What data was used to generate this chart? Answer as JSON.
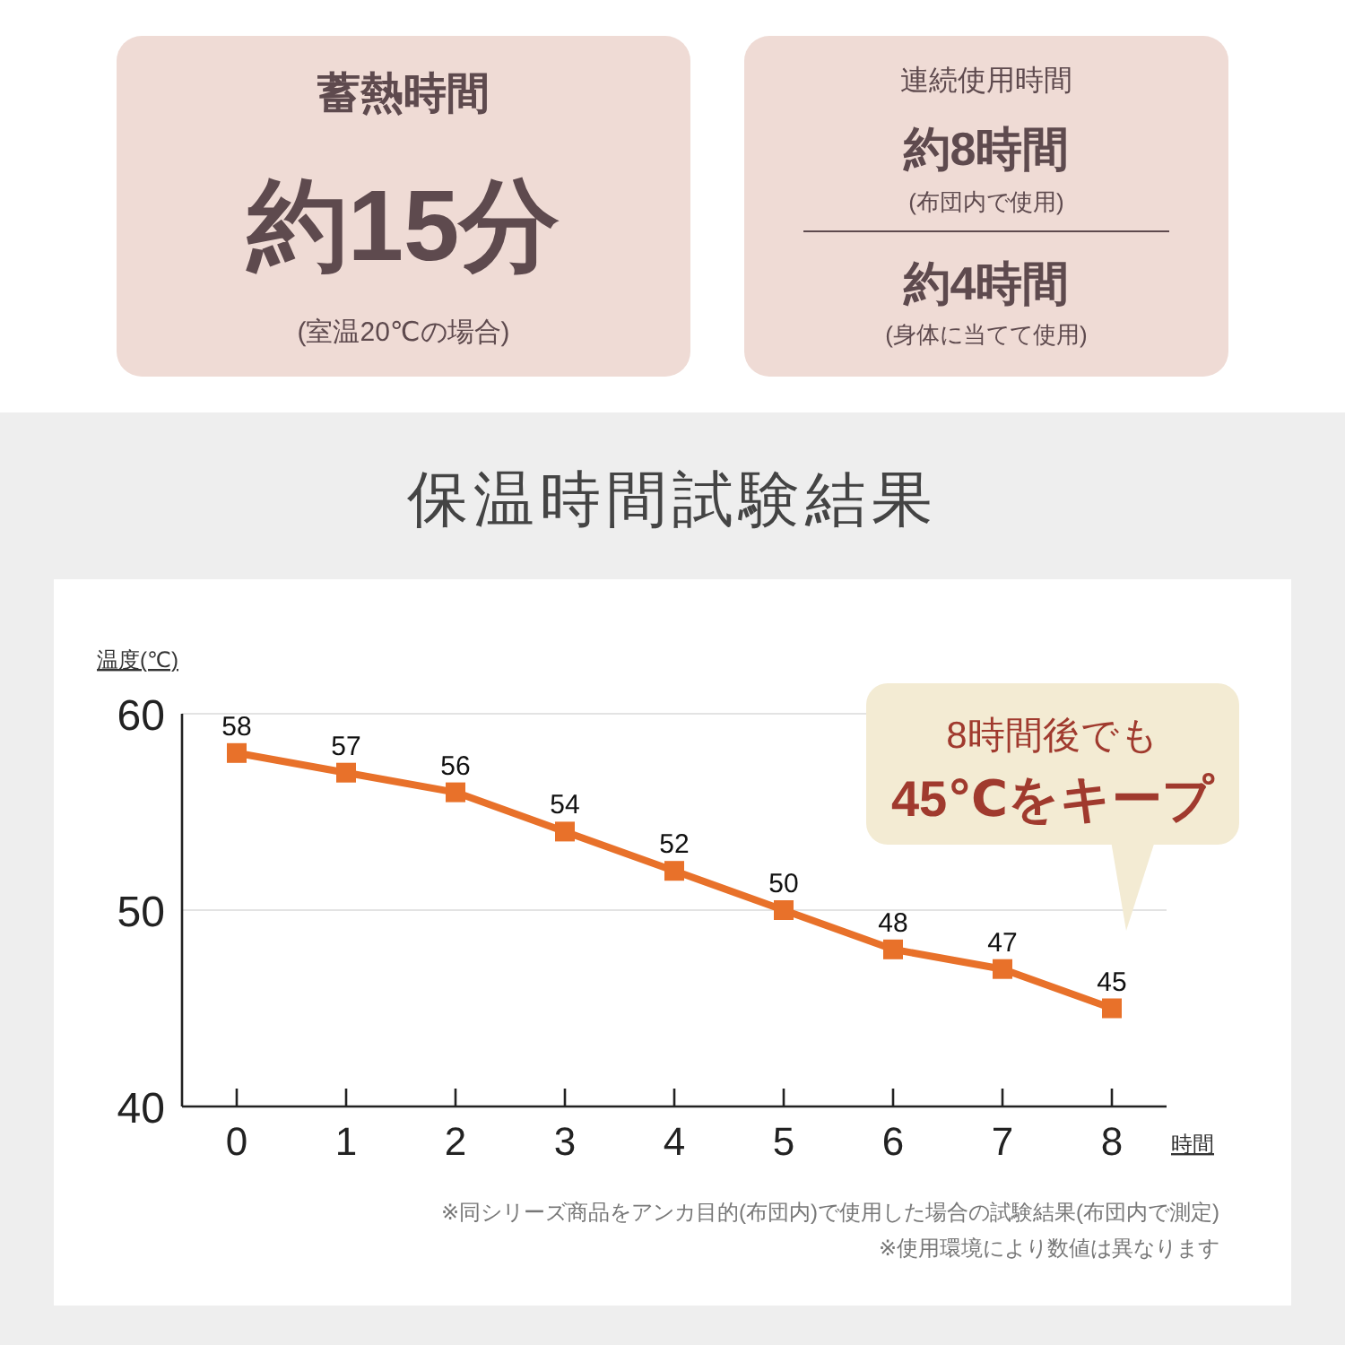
{
  "chart_data": [
    {
      "type": "other",
      "annotations": [
        "蓄熱時間",
        "約15分",
        "(室温20℃の場合)",
        "連続使用時間",
        "約8時間",
        "(布団内で使用)",
        "約4時間",
        "(身体に当てて使用)"
      ]
    },
    {
      "type": "line",
      "title": "保温時間試験結果",
      "ylabel": "温度(℃)",
      "xlabel": "時間",
      "x": [
        0,
        1,
        2,
        3,
        4,
        5,
        6,
        7,
        8
      ],
      "series": [
        {
          "color": "#e8712a",
          "values": [
            58,
            57,
            56,
            54,
            52,
            50,
            48,
            47,
            45
          ]
        }
      ],
      "xlim": [
        -0.5,
        8.5
      ],
      "xticks": [
        0,
        1,
        2,
        3,
        4,
        5,
        6,
        7,
        8
      ],
      "ylim": [
        40,
        60
      ],
      "yticks": [
        40,
        50,
        60
      ],
      "grid": "y",
      "marker": "square",
      "line_style": "solid",
      "data_labels": true,
      "annotations": [
        "8時間後でも\n45℃をキープ",
        "※同シリーズ商品をアンカ目的(布団内)で使用した場合の試験結果(布団内で測定)",
        "※使用環境により数値は異なります"
      ]
    }
  ]
}
